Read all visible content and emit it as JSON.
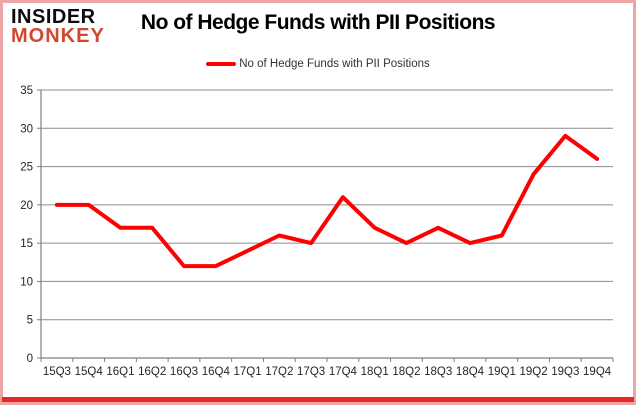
{
  "logo": {
    "line1": "INSIDER",
    "line2": "MONKEY"
  },
  "title": "No of Hedge Funds with PII Positions",
  "legend": {
    "label": "No of Hedge Funds with PII Positions",
    "line_color": "#ff0000"
  },
  "chart_data": {
    "type": "line",
    "title": "No of Hedge Funds with PII Positions",
    "categories": [
      "15Q3",
      "15Q4",
      "16Q1",
      "16Q2",
      "16Q3",
      "16Q4",
      "17Q1",
      "17Q2",
      "17Q3",
      "17Q4",
      "18Q1",
      "18Q2",
      "18Q3",
      "18Q4",
      "19Q1",
      "19Q2",
      "19Q3",
      "19Q4"
    ],
    "series": [
      {
        "name": "No of Hedge Funds with PII Positions",
        "color": "#ff0000",
        "values": [
          20,
          20,
          17,
          17,
          12,
          12,
          14,
          16,
          15,
          21,
          17,
          15,
          17,
          15,
          16,
          24,
          29,
          26
        ]
      }
    ],
    "xlabel": "",
    "ylabel": "",
    "ylim": [
      0,
      35
    ],
    "yticks": [
      0,
      5,
      10,
      15,
      20,
      25,
      30,
      35
    ],
    "grid": true,
    "legend_position": "top"
  },
  "colors": {
    "line": "#ff0000",
    "grid": "#8c8c8c",
    "axis": "#7f7f7f",
    "tick_text": "#262626",
    "border_pink": "#eca6a6",
    "border_bottom_red": "#ea2525",
    "logo_black": "#0d0d0d",
    "logo_red": "#d0492f"
  }
}
